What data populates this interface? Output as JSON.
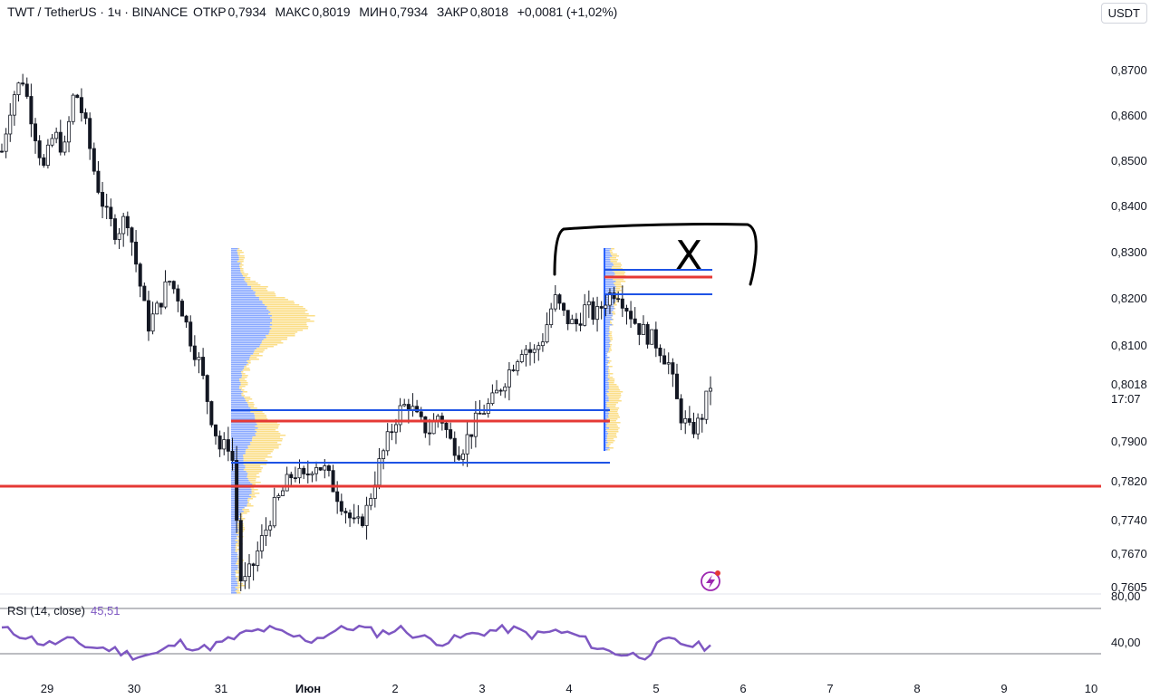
{
  "header": {
    "symbol": "TWT / TetherUS · 1ч · BINANCE",
    "open_label": "ОТКР",
    "open_value": "0,7934",
    "high_label": "МАКС",
    "high_value": "0,8019",
    "low_label": "МИН",
    "low_value": "0,7934",
    "close_label": "ЗАКР",
    "close_value": "0,8018",
    "change": "+0,0081 (+1,02%)"
  },
  "currency_button": "USDT",
  "price_axis": {
    "ticks": [
      {
        "value": 0.87,
        "label": "0,8700"
      },
      {
        "value": 0.86,
        "label": "0,8600"
      },
      {
        "value": 0.85,
        "label": "0,8500"
      },
      {
        "value": 0.84,
        "label": "0,8400"
      },
      {
        "value": 0.83,
        "label": "0,8300"
      },
      {
        "value": 0.82,
        "label": "0,8200"
      },
      {
        "value": 0.81,
        "label": "0,8100"
      },
      {
        "value": 0.79,
        "label": "0,7900"
      },
      {
        "value": 0.782,
        "label": "0,7820"
      },
      {
        "value": 0.774,
        "label": "0,7740"
      },
      {
        "value": 0.767,
        "label": "0,7670"
      },
      {
        "value": 0.7605,
        "label": "0,7605"
      }
    ],
    "current_price": "0,8018",
    "countdown": "17:07"
  },
  "time_axis": {
    "labels": [
      "29",
      "30",
      "31",
      "Июн",
      "2",
      "3",
      "4",
      "5",
      "6",
      "7",
      "8",
      "9",
      "10"
    ]
  },
  "rsi": {
    "label": "RSI (14, close)",
    "value": "45,51",
    "ticks": [
      {
        "value": 80,
        "label": "80,00"
      },
      {
        "value": 40,
        "label": "40,00"
      }
    ]
  },
  "annotation_mark": "X",
  "colors": {
    "candle": "#131722",
    "red_line": "#e53935",
    "blue_line": "#1e53e5",
    "profile_blue": "#2962ff",
    "profile_yellow": "#f7c325",
    "rsi_line": "#7e57c2"
  },
  "chart_data": {
    "type": "candlestick",
    "ohlc_close_path": [
      0.852,
      0.864,
      0.868,
      0.858,
      0.848,
      0.856,
      0.852,
      0.866,
      0.858,
      0.846,
      0.838,
      0.834,
      0.838,
      0.826,
      0.814,
      0.818,
      0.824,
      0.82,
      0.812,
      0.806,
      0.796,
      0.788,
      0.79,
      0.76,
      0.764,
      0.77,
      0.776,
      0.78,
      0.784,
      0.782,
      0.786,
      0.784,
      0.78,
      0.776,
      0.772,
      0.776,
      0.784,
      0.79,
      0.796,
      0.798,
      0.794,
      0.792,
      0.796,
      0.79,
      0.788,
      0.792,
      0.796,
      0.798,
      0.802,
      0.806,
      0.81,
      0.808,
      0.812,
      0.82,
      0.816,
      0.814,
      0.818,
      0.816,
      0.82,
      0.822,
      0.818,
      0.814,
      0.812,
      0.81,
      0.806,
      0.796,
      0.792,
      0.794,
      0.8018
    ],
    "horizontal_levels": [
      0.7805,
      0.7938,
      0.7962,
      0.7852,
      0.8245,
      0.8257,
      0.8208
    ],
    "rsi_values": [
      62,
      56,
      48,
      52,
      46,
      44,
      38,
      40,
      50,
      44,
      50,
      58,
      62,
      56,
      52,
      60,
      64,
      58,
      62,
      54,
      50,
      56,
      60,
      62,
      56,
      60,
      56,
      44,
      40,
      38,
      52,
      48,
      45.51
    ]
  }
}
